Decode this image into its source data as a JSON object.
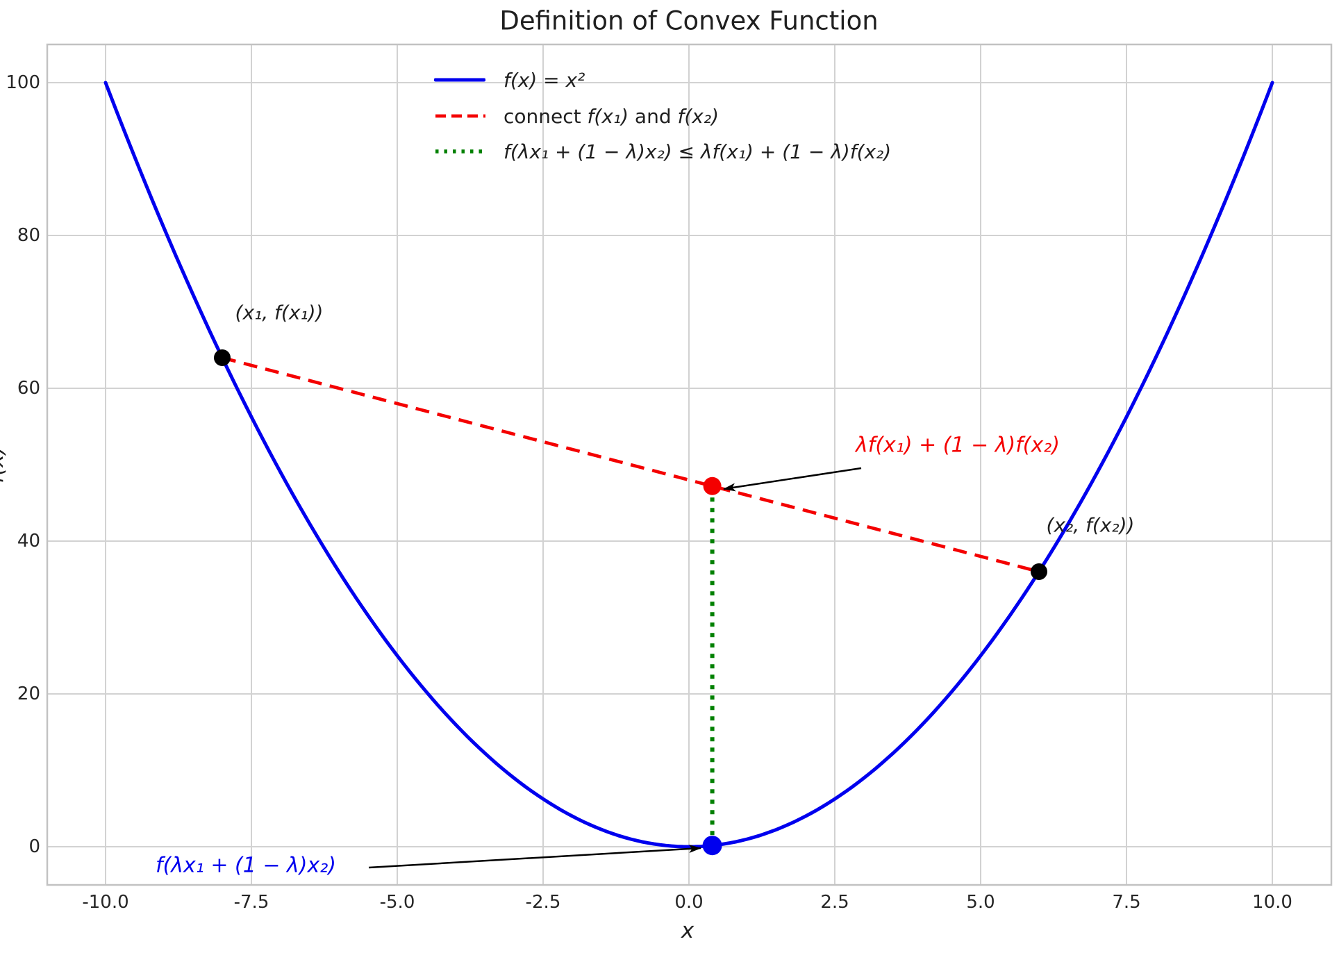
{
  "title": "Definition of Convex Function",
  "axes": {
    "xlabel": "x",
    "ylabel": "f(x)",
    "x_ticks": [
      "-10.0",
      "-7.5",
      "-5.0",
      "-2.5",
      "0.0",
      "2.5",
      "5.0",
      "7.5",
      "10.0"
    ],
    "x_tick_values": [
      -10,
      -7.5,
      -5,
      -2.5,
      0,
      2.5,
      5,
      7.5,
      10
    ],
    "y_ticks": [
      "100",
      "80",
      "60",
      "40",
      "20",
      "0"
    ],
    "y_tick_values": [
      100,
      80,
      60,
      40,
      20,
      0
    ],
    "xlim": [
      -11,
      11
    ],
    "ylim": [
      -5,
      105
    ],
    "grid": "on"
  },
  "legend": {
    "position": "upper center-left, no frame",
    "items": [
      {
        "label": "f(x) = x²",
        "color": "#0000ee",
        "linestyle": "solid"
      },
      {
        "text_before": "connect ",
        "math_a": "f(x₁)",
        "text_mid": " and ",
        "math_b": "f(x₂)",
        "color": "#f40000",
        "linestyle": "dashed"
      },
      {
        "label": "f(λx₁ + (1 − λ)x₂) ≤ λf(x₁) + (1 − λ)f(x₂)",
        "color": "#008000",
        "linestyle": "dotted"
      }
    ]
  },
  "chart_data": {
    "type": "line",
    "title": "Definition of Convex Function",
    "xlabel": "x",
    "ylabel": "f(x)",
    "xlim": [
      -11,
      11
    ],
    "ylim": [
      -5,
      105
    ],
    "series": [
      {
        "name": "f(x) = x²",
        "type": "function-curve",
        "function": "x^2",
        "x_range": [
          -10,
          10
        ],
        "color": "#0000ee",
        "linestyle": "solid"
      },
      {
        "name": "connect f(x₁) and f(x₂)",
        "type": "segment",
        "points": [
          [
            -8,
            64
          ],
          [
            6,
            36
          ]
        ],
        "color": "#f40000",
        "linestyle": "dashed"
      },
      {
        "name": "f(λx₁ + (1 − λ)x₂) ≤ λf(x₁) + (1 − λ)f(x₂)",
        "type": "segment",
        "points": [
          [
            0.4,
            0.16
          ],
          [
            0.4,
            47.2
          ]
        ],
        "color": "#008000",
        "linestyle": "dotted"
      }
    ],
    "points": [
      {
        "x": -8,
        "y": 64,
        "color": "#000000"
      },
      {
        "x": 6,
        "y": 36,
        "color": "#000000"
      },
      {
        "x": 0.4,
        "y": 47.2,
        "color": "#f40000"
      },
      {
        "x": 0.4,
        "y": 0.16,
        "color": "#0000ee"
      }
    ]
  },
  "annotations": {
    "point1_label": "(x₁, f(x₁))",
    "point2_label": "(x₂, f(x₂))",
    "chord_value": {
      "text": "λf(x₁) + (1 − λ)f(x₂)",
      "color": "#f40000"
    },
    "function_value": {
      "text": "f(λx₁ + (1 − λ)x₂)",
      "color": "#0000ee"
    }
  }
}
